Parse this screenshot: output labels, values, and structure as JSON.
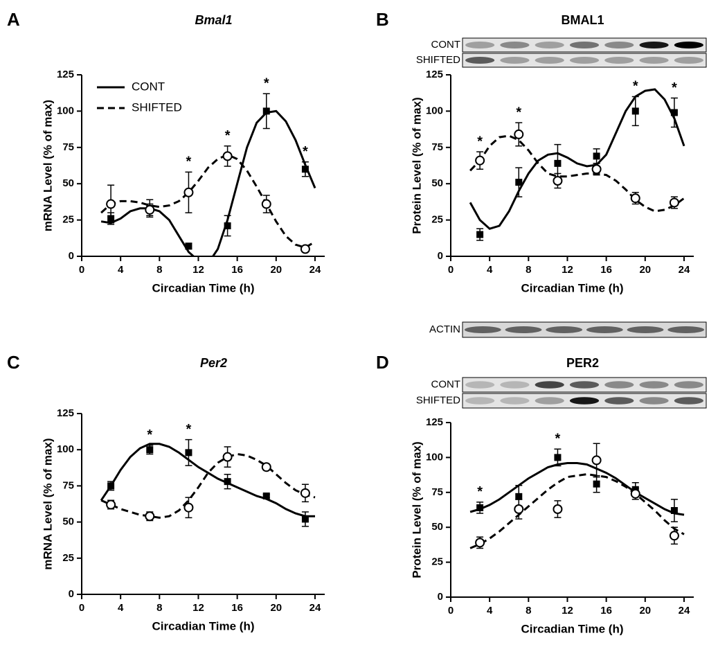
{
  "chart_data": [
    {
      "type": "scatter",
      "panel_label": "A",
      "title": "Bmal1",
      "title_style": "italic",
      "xlabel": "Circadian Time (h)",
      "ylabel": "mRNA Level (% of max)",
      "xlim": [
        0,
        25
      ],
      "ylim": [
        0,
        125
      ],
      "xticks": [
        0,
        4,
        8,
        12,
        16,
        20,
        24
      ],
      "yticks": [
        0,
        25,
        50,
        75,
        100,
        125
      ],
      "legend": "upper left",
      "x": [
        3,
        7,
        11,
        15,
        19,
        23
      ],
      "significance": [
        null,
        null,
        "*",
        "*",
        "*",
        "*"
      ],
      "fit_x": [
        2,
        3,
        4,
        5,
        6,
        7,
        8,
        9,
        10,
        11,
        12,
        13,
        14,
        15,
        16,
        17,
        18,
        19,
        20,
        21,
        22,
        23,
        24
      ],
      "series": [
        {
          "name": "CONT",
          "color": "#000000",
          "marker": "square",
          "line_style": "solid",
          "values": [
            26,
            33,
            7,
            21,
            100,
            60
          ],
          "errors": [
            4,
            6,
            2,
            7,
            12,
            5
          ],
          "fit_values": [
            24,
            23,
            26,
            31,
            33,
            33,
            31,
            25,
            14,
            3,
            -3,
            -5,
            5,
            25,
            50,
            75,
            92,
            99,
            100,
            93,
            80,
            63,
            47
          ]
        },
        {
          "name": "SHIFTED",
          "color": "#000000",
          "marker": "open-circle",
          "line_style": "dashed",
          "values": [
            36,
            32,
            44,
            69,
            36,
            5
          ],
          "errors": [
            13,
            4,
            14,
            7,
            6,
            1
          ],
          "fit_values": [
            30,
            36,
            38,
            38,
            37,
            35,
            34,
            35,
            38,
            44,
            52,
            61,
            67,
            70,
            67,
            59,
            48,
            36,
            24,
            14,
            8,
            6,
            10
          ]
        }
      ]
    },
    {
      "type": "scatter",
      "panel_label": "B",
      "title": "BMAL1",
      "title_style": "normal",
      "xlabel": "Circadian Time (h)",
      "ylabel": "Protein Level (% of max)",
      "xlim": [
        0,
        25
      ],
      "ylim": [
        0,
        125
      ],
      "xticks": [
        0,
        4,
        8,
        12,
        16,
        20,
        24
      ],
      "yticks": [
        0,
        25,
        50,
        75,
        100,
        125
      ],
      "blots": true,
      "loading_control": "ACTIN",
      "x": [
        3,
        7,
        11,
        15,
        19,
        23
      ],
      "significance": [
        "*",
        "*",
        null,
        null,
        "*",
        "*"
      ],
      "fit_x": [
        2,
        3,
        4,
        5,
        6,
        7,
        8,
        9,
        10,
        11,
        12,
        13,
        14,
        15,
        16,
        17,
        18,
        19,
        20,
        21,
        22,
        23,
        24
      ],
      "series": [
        {
          "name": "CONT",
          "color": "#000000",
          "marker": "square",
          "line_style": "solid",
          "values": [
            15,
            51,
            64,
            69,
            100,
            99
          ],
          "errors": [
            4,
            10,
            13,
            5,
            10,
            10
          ],
          "fit_values": [
            37,
            25,
            19,
            21,
            31,
            45,
            57,
            66,
            70,
            71,
            68,
            64,
            62,
            63,
            70,
            85,
            100,
            110,
            114,
            115,
            108,
            95,
            76
          ]
        },
        {
          "name": "SHIFTED",
          "color": "#000000",
          "marker": "open-circle",
          "line_style": "dashed",
          "values": [
            66,
            84,
            52,
            60,
            40,
            37
          ],
          "errors": [
            6,
            8,
            5,
            4,
            4,
            4
          ],
          "fit_values": [
            59,
            66,
            76,
            82,
            83,
            80,
            73,
            64,
            57,
            55,
            55,
            56,
            57,
            57,
            56,
            52,
            46,
            39,
            34,
            31,
            32,
            35,
            40
          ]
        }
      ]
    },
    {
      "type": "scatter",
      "panel_label": "C",
      "title": "Per2",
      "title_style": "italic",
      "xlabel": "Circadian Time (h)",
      "ylabel": "mRNA Level (% of max)",
      "xlim": [
        0,
        25
      ],
      "ylim": [
        0,
        125
      ],
      "xticks": [
        0,
        4,
        8,
        12,
        16,
        20,
        24
      ],
      "yticks": [
        0,
        25,
        50,
        75,
        100,
        125
      ],
      "x": [
        3,
        7,
        11,
        15,
        19,
        23
      ],
      "significance": [
        null,
        "*",
        "*",
        null,
        null,
        null
      ],
      "fit_x": [
        2,
        3,
        4,
        5,
        6,
        7,
        8,
        9,
        10,
        11,
        12,
        13,
        14,
        15,
        16,
        17,
        18,
        19,
        20,
        21,
        22,
        23,
        24
      ],
      "series": [
        {
          "color": "#000000",
          "marker": "square",
          "line_style": "solid",
          "values": [
            75,
            100,
            98,
            78,
            68,
            52
          ],
          "errors": [
            3,
            3,
            9,
            5,
            1,
            5
          ],
          "fit_values": [
            65,
            75,
            86,
            95,
            101,
            104,
            104,
            102,
            98,
            93,
            88,
            84,
            80,
            77,
            74,
            71,
            68,
            66,
            63,
            59,
            56,
            54,
            54
          ]
        },
        {
          "color": "#000000",
          "marker": "open-circle",
          "line_style": "dashed",
          "values": [
            62,
            54,
            60,
            95,
            88,
            70
          ],
          "errors": [
            3,
            3,
            7,
            7,
            1,
            6
          ],
          "fit_values": [
            65,
            62,
            59,
            57,
            55,
            54,
            53,
            54,
            58,
            65,
            74,
            84,
            91,
            95,
            97,
            96,
            93,
            89,
            83,
            77,
            72,
            69,
            67
          ]
        }
      ]
    },
    {
      "type": "scatter",
      "panel_label": "D",
      "title": "PER2",
      "title_style": "normal",
      "xlabel": "Circadian Time (h)",
      "ylabel": "Protein Level (% of max)",
      "xlim": [
        0,
        25
      ],
      "ylim": [
        0,
        125
      ],
      "xticks": [
        0,
        4,
        8,
        12,
        16,
        20,
        24
      ],
      "yticks": [
        0,
        25,
        50,
        75,
        100,
        125
      ],
      "blots": true,
      "x": [
        3,
        7,
        11,
        15,
        19,
        23
      ],
      "significance": [
        "*",
        null,
        "*",
        null,
        null,
        null
      ],
      "fit_x": [
        2,
        3,
        4,
        5,
        6,
        7,
        8,
        9,
        10,
        11,
        12,
        13,
        14,
        15,
        16,
        17,
        18,
        19,
        20,
        21,
        22,
        23,
        24
      ],
      "series": [
        {
          "name": "CONT",
          "color": "#000000",
          "marker": "square",
          "line_style": "solid",
          "values": [
            64,
            72,
            100,
            81,
            77,
            62
          ],
          "errors": [
            4,
            8,
            6,
            6,
            5,
            8
          ],
          "fit_values": [
            61,
            63,
            66,
            70,
            75,
            80,
            85,
            89,
            93,
            95,
            96,
            96,
            95,
            92,
            89,
            85,
            80,
            75,
            71,
            67,
            63,
            60,
            59
          ]
        },
        {
          "name": "SHIFTED",
          "color": "#000000",
          "marker": "open-circle",
          "line_style": "dashed",
          "values": [
            39,
            63,
            63,
            98,
            74,
            44
          ],
          "errors": [
            4,
            7,
            6,
            12,
            4,
            6
          ],
          "fit_values": [
            35,
            38,
            42,
            47,
            53,
            59,
            65,
            71,
            77,
            82,
            86,
            87,
            88,
            87,
            86,
            83,
            79,
            74,
            68,
            62,
            55,
            49,
            45
          ]
        }
      ]
    }
  ]
}
